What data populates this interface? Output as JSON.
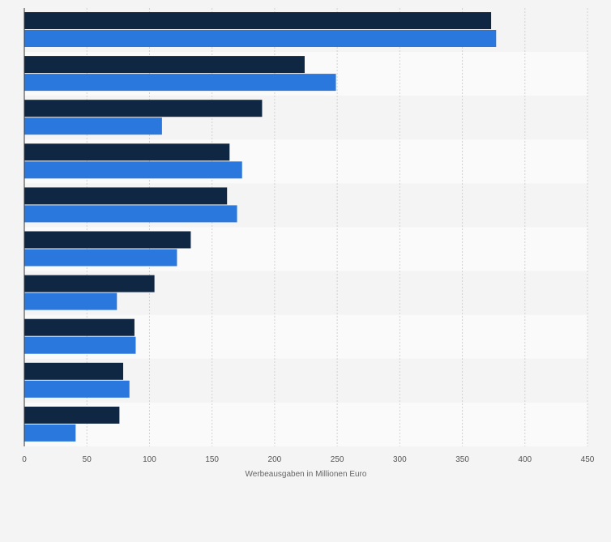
{
  "chart_data": {
    "type": "bar",
    "orientation": "horizontal",
    "title": "",
    "xlabel": "Werbeausgaben in Millionen Euro",
    "ylabel": "",
    "xlim": [
      0,
      450
    ],
    "x_ticks": [
      0,
      50,
      100,
      150,
      200,
      250,
      300,
      350,
      400,
      450
    ],
    "grid": true,
    "legend": "none",
    "categories": [
      "",
      "",
      "",
      "",
      "",
      "",
      "",
      "",
      "",
      ""
    ],
    "series": [
      {
        "color": "#0f2742",
        "values": [
          373,
          224,
          190,
          164,
          162,
          133,
          104,
          88,
          79,
          76
        ]
      },
      {
        "color": "#2a78dd",
        "values": [
          377,
          249,
          110,
          174,
          170,
          122,
          74,
          89,
          84,
          41
        ]
      }
    ]
  }
}
